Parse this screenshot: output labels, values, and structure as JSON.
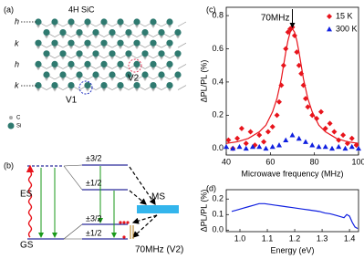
{
  "panel_labels": [
    "(a)",
    "(b)",
    "(c)",
    "(d)"
  ],
  "structure": {
    "title": "4H SiC",
    "stacking": [
      "h",
      "k",
      "h",
      "k"
    ],
    "defects": [
      "V1",
      "V2"
    ],
    "legend": [
      "C",
      "Si"
    ]
  },
  "levels": {
    "excited": "ES",
    "ground": "GS",
    "excited_sublevels": [
      "±3/2",
      "±1/2"
    ],
    "ground_sublevels": [
      "±3/2",
      "±1/2"
    ],
    "metastable": "MS",
    "transition": "70MHz (V2)"
  },
  "chart_data": [
    {
      "type": "scatter",
      "xlabel": "Microwave frequency (MHz)",
      "ylabel": "ΔPL/PL (%)",
      "annotation": {
        "text": "70MHz",
        "x": 70
      },
      "xlim": [
        40,
        100
      ],
      "xticks": [
        40,
        60,
        80,
        100
      ],
      "ylim": [
        -0.04,
        0.85
      ],
      "yticks": [
        {
          "value": 0,
          "label": "0.0"
        },
        {
          "value": 0.2,
          "label": "0.2"
        },
        {
          "value": 0.4,
          "label": "0.4"
        },
        {
          "value": 0.6,
          "label": "0.6"
        },
        {
          "value": 0.8,
          "label": "0.8"
        }
      ],
      "legend": "upper right",
      "series": [
        {
          "name": "15 K",
          "color": "#e8141c",
          "marker": "diamond",
          "x": [
            41,
            43,
            45,
            47,
            49,
            51,
            53,
            55,
            57,
            59,
            61,
            63,
            64,
            65,
            66,
            67,
            68,
            69,
            70,
            71,
            72,
            73,
            74,
            75,
            76,
            77,
            79,
            81,
            83,
            85,
            87,
            89,
            91,
            93,
            95,
            97,
            99
          ],
          "values": [
            0.05,
            0.0,
            0.06,
            0.12,
            0.03,
            0.1,
            0.02,
            0.08,
            0.04,
            0.1,
            0.13,
            0.2,
            0.28,
            0.38,
            0.5,
            0.6,
            0.7,
            0.72,
            0.73,
            0.68,
            0.58,
            0.5,
            0.45,
            0.38,
            0.3,
            0.25,
            0.2,
            0.18,
            0.22,
            0.12,
            0.15,
            0.1,
            0.05,
            0.08,
            0.03,
            0.06,
            0.02
          ]
        },
        {
          "color": "#e8141c",
          "marker": "line",
          "x": [
            40,
            45,
            50,
            55,
            58,
            61,
            63,
            65,
            67,
            68,
            69,
            70,
            71,
            72,
            73,
            75,
            77,
            79,
            82,
            85,
            90,
            95,
            100
          ],
          "values": [
            0.03,
            0.04,
            0.06,
            0.1,
            0.14,
            0.22,
            0.3,
            0.42,
            0.58,
            0.65,
            0.7,
            0.72,
            0.7,
            0.65,
            0.58,
            0.42,
            0.3,
            0.22,
            0.14,
            0.1,
            0.06,
            0.04,
            0.03
          ]
        },
        {
          "name": "300 K",
          "color": "#1020e0",
          "marker": "triangle",
          "x": [
            40,
            43,
            46,
            49,
            52,
            55,
            58,
            61,
            64,
            67,
            70,
            73,
            76,
            79,
            82,
            85,
            88,
            91,
            94,
            97,
            100
          ],
          "values": [
            0.01,
            0.0,
            0.01,
            0.0,
            0.01,
            0.01,
            0.0,
            0.01,
            0.02,
            0.05,
            0.08,
            0.06,
            0.04,
            0.02,
            0.01,
            0.01,
            0.0,
            0.01,
            0.0,
            0.01,
            0.0
          ]
        }
      ]
    },
    {
      "type": "line",
      "xlabel": "Energy (eV)",
      "ylabel": "ΔPL/PL (%)",
      "color": "#1020e0",
      "xlim": [
        0.95,
        1.433
      ],
      "xticks": [
        {
          "value": 1,
          "label": "1.0"
        },
        {
          "value": 1.1,
          "label": "1.1"
        },
        {
          "value": 1.2,
          "label": "1.2"
        },
        {
          "value": 1.3,
          "label": "1.3"
        },
        {
          "value": 1.4,
          "label": "1.4"
        }
      ],
      "ylim": [
        -0.01,
        0.26
      ],
      "yticks": [
        {
          "value": 0,
          "label": "0.0"
        },
        {
          "value": 0.1,
          "label": "0.1"
        },
        {
          "value": 0.2,
          "label": "0.2"
        }
      ],
      "x": [
        0.97,
        0.99,
        1.01,
        1.03,
        1.05,
        1.07,
        1.09,
        1.11,
        1.13,
        1.15,
        1.17,
        1.19,
        1.21,
        1.23,
        1.25,
        1.27,
        1.29,
        1.31,
        1.33,
        1.35,
        1.37,
        1.38,
        1.39,
        1.4,
        1.41,
        1.42,
        1.43
      ],
      "values": [
        0.12,
        0.13,
        0.14,
        0.15,
        0.16,
        0.17,
        0.17,
        0.165,
        0.16,
        0.155,
        0.15,
        0.145,
        0.14,
        0.135,
        0.13,
        0.125,
        0.12,
        0.11,
        0.105,
        0.095,
        0.085,
        0.08,
        0.1,
        0.09,
        0.05,
        0.02,
        0.01
      ]
    }
  ]
}
